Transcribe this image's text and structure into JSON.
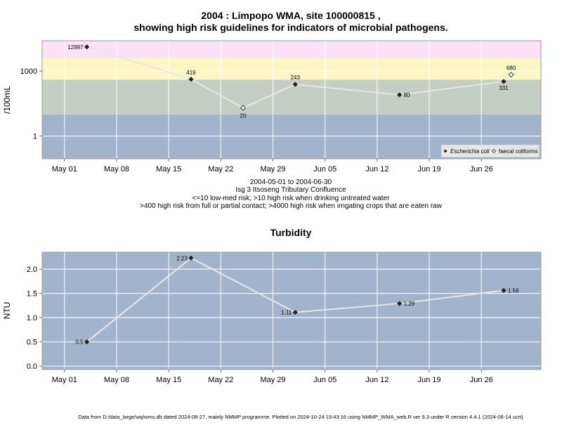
{
  "chart_data": [
    {
      "type": "line",
      "title": "2004 : Limpopo WMA, site 100000815 ,",
      "subtitle": "showing high risk guidelines for indicators of microbial pathogens.",
      "ylabel": "/100mL",
      "yscale": "log",
      "ylim": [
        0.09,
        25000
      ],
      "yticks": [
        {
          "value": 1,
          "label": "1"
        },
        {
          "value": 1000,
          "label": "1000"
        }
      ],
      "xlim": [
        "2004-04-28",
        "2004-07-04"
      ],
      "xticks": [
        "May 01",
        "May 08",
        "May 15",
        "May 22",
        "May 29",
        "Jun 05",
        "Jun 12",
        "Jun 19",
        "Jun 26"
      ],
      "xtick_dates": [
        "2004-05-01",
        "2004-05-08",
        "2004-05-15",
        "2004-05-22",
        "2004-05-29",
        "2004-06-05",
        "2004-06-12",
        "2004-06-19",
        "2004-06-26"
      ],
      "bands": [
        {
          "from": 0.09,
          "to": 10,
          "color": "#a2b4cc"
        },
        {
          "from": 10,
          "to": 400,
          "color": "#c4cec4"
        },
        {
          "from": 400,
          "to": 4000,
          "color": "#fdf5c2"
        },
        {
          "from": 4000,
          "to": 25000,
          "color": "#fce0f6"
        }
      ],
      "series": [
        {
          "name": "Escherichia coli",
          "marker": "filled-diamond",
          "points": [
            {
              "x": "2004-05-04",
              "y": 12997,
              "label": "12997"
            },
            {
              "x": "2004-05-18",
              "y": 419,
              "label": "419"
            },
            {
              "x": "2004-06-01",
              "y": 243,
              "label": "243"
            },
            {
              "x": "2004-06-15",
              "y": 80,
              "label": "80"
            },
            {
              "x": "2004-06-29",
              "y": 331,
              "label": "331"
            }
          ]
        },
        {
          "name": "faecal coliforms",
          "marker": "open-diamond",
          "points": [
            {
              "x": "2004-05-25",
              "y": 20,
              "label": "20"
            },
            {
              "x": "2004-06-30",
              "y": 680,
              "label": "680"
            }
          ]
        }
      ],
      "line_order": [
        {
          "x": "2004-05-04",
          "y": 12997
        },
        {
          "x": "2004-05-18",
          "y": 419
        },
        {
          "x": "2004-05-25",
          "y": 20
        },
        {
          "x": "2004-06-01",
          "y": 243
        },
        {
          "x": "2004-06-15",
          "y": 80
        },
        {
          "x": "2004-06-29",
          "y": 331
        },
        {
          "x": "2004-06-30",
          "y": 680
        }
      ],
      "legend_position": "bottom-right",
      "legend": [
        "Escherichia coli",
        "faecal coliforms"
      ],
      "caption": [
        "2004-05-01 to 2004-06-30",
        "Isg 3 Itsoseng Tributary Confluence",
        "<=10 low-med risk; >10 high risk when drinking untreated water",
        ">400 high risk from full or partial contact; >4000 high risk when irrigating crops that are eaten raw"
      ],
      "grid": true
    },
    {
      "type": "line",
      "title": "Turbidity",
      "ylabel": "NTU",
      "ylim": [
        -0.07,
        2.35
      ],
      "yticks": [
        {
          "value": 0,
          "label": "0.0"
        },
        {
          "value": 0.5,
          "label": "0.5"
        },
        {
          "value": 1,
          "label": "1.0"
        },
        {
          "value": 1.5,
          "label": "1.5"
        },
        {
          "value": 2,
          "label": "2.0"
        }
      ],
      "xlim": [
        "2004-04-28",
        "2004-07-04"
      ],
      "xticks": [
        "May 01",
        "May 08",
        "May 15",
        "May 22",
        "May 29",
        "Jun 05",
        "Jun 12",
        "Jun 19",
        "Jun 26"
      ],
      "xtick_dates": [
        "2004-05-01",
        "2004-05-08",
        "2004-05-15",
        "2004-05-22",
        "2004-05-29",
        "2004-06-05",
        "2004-06-12",
        "2004-06-19",
        "2004-06-26"
      ],
      "series": [
        {
          "marker": "filled-diamond",
          "points": [
            {
              "x": "2004-05-04",
              "y": 0.5,
              "label": "0.5"
            },
            {
              "x": "2004-05-18",
              "y": 2.23,
              "label": "2.23"
            },
            {
              "x": "2004-06-01",
              "y": 1.11,
              "label": "1.11"
            },
            {
              "x": "2004-06-15",
              "y": 1.29,
              "label": "1.29"
            },
            {
              "x": "2004-06-29",
              "y": 1.56,
              "label": "1.56"
            }
          ]
        }
      ],
      "background_color": "#a2b4cc",
      "grid": true
    }
  ],
  "footer": "Data from D:/data_large/wq/wms.db dated 2024-08-27, mainly NMMP programme. Plotted on 2024-10-24 19:43:16 using NMMP_WMA_web.R ver 9.3 under R version 4.4.1 (2024-06-14 ucrt)"
}
